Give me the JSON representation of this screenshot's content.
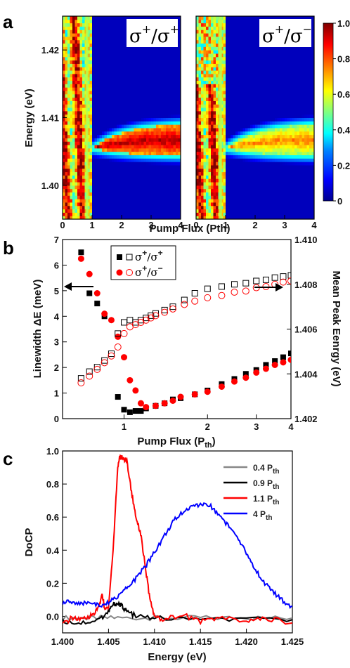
{
  "chart_data": [
    {
      "panel": "a",
      "type": "heatmap",
      "xlabel": "Pump Flux (Pth)",
      "ylabel": "Energy (eV)",
      "xlim": [
        0,
        4
      ],
      "ylim": [
        1.395,
        1.425
      ],
      "xticks": [
        "0",
        "1",
        "2",
        "3",
        "4"
      ],
      "yticks": [
        "1.40",
        "1.41",
        "1.42"
      ],
      "ytick_values": [
        1.4,
        1.41,
        1.42
      ],
      "panels": [
        {
          "name": "left",
          "label_base": "σ",
          "label_sup1": "+",
          "label_sep": "/",
          "label_sup2": "+"
        },
        {
          "name": "right",
          "label_base": "σ",
          "label_sup1": "+",
          "label_sep": "/",
          "label_sup2": "−"
        }
      ],
      "colorbar": {
        "min": 0,
        "max": 1.0,
        "ticks": [
          "0",
          "0.2",
          "0.4",
          "0.6",
          "0.8",
          "1.0"
        ],
        "tick_values": [
          0,
          0.2,
          0.4,
          0.6,
          0.8,
          1.0
        ]
      },
      "colormap": [
        "#00008f",
        "#0000ff",
        "#0080ff",
        "#00ffff",
        "#80ff80",
        "#ffff00",
        "#ff8000",
        "#ff0000",
        "#800000"
      ]
    },
    {
      "panel": "b",
      "type": "scatter",
      "xlabel": "Pump Flux (P",
      "xlabel_sub": "th",
      "xlabel_end": ")",
      "ylabel": "Linewidth ΔE (meV)",
      "y2label": "Mean Peak Eenrgy (eV)",
      "xscale": "log",
      "xlim": [
        0.6,
        4
      ],
      "ylim": [
        0,
        7
      ],
      "y2lim": [
        1.402,
        1.41
      ],
      "xticks": [
        "1",
        "2",
        "3",
        "4"
      ],
      "xtick_values": [
        1,
        2,
        3,
        4
      ],
      "yticks": [
        "0",
        "1",
        "2",
        "3",
        "4",
        "5",
        "6",
        "7"
      ],
      "ytick_values": [
        0,
        1,
        2,
        3,
        4,
        5,
        6,
        7
      ],
      "y2ticks": [
        "1.402",
        "1.404",
        "1.406",
        "1.408",
        "1.410"
      ],
      "y2tick_values": [
        1.402,
        1.404,
        1.406,
        1.408,
        1.41
      ],
      "legend": [
        {
          "base": "σ",
          "sup1": "+",
          "sep": "/",
          "sup2": "+"
        },
        {
          "base": "σ",
          "sup1": "+",
          "sep": "/",
          "sup2": "−"
        }
      ],
      "legend_position": "top-left",
      "series": [
        {
          "color": "#000000",
          "marker": "filled-square",
          "axis": "left",
          "x": [
            0.7,
            0.75,
            0.8,
            0.85,
            0.95,
            1.0,
            1.05,
            1.1,
            1.15,
            1.2,
            1.3,
            1.4,
            1.5,
            1.6,
            1.8,
            2.0,
            2.25,
            2.5,
            2.75,
            3.0,
            3.25,
            3.5,
            3.75,
            4.0
          ],
          "y": [
            6.5,
            4.9,
            4.5,
            4.0,
            0.85,
            0.35,
            0.25,
            0.3,
            0.3,
            0.4,
            0.5,
            0.6,
            0.75,
            0.8,
            0.95,
            1.1,
            1.35,
            1.55,
            1.75,
            1.9,
            2.1,
            2.25,
            2.4,
            2.55
          ]
        },
        {
          "color": "#ff0000",
          "marker": "filled-circle",
          "axis": "left",
          "x": [
            0.7,
            0.75,
            0.8,
            0.85,
            0.9,
            0.95,
            1.0,
            1.05,
            1.1,
            1.15,
            1.2,
            1.3,
            1.4,
            1.5,
            1.6,
            1.8,
            2.0,
            2.25,
            2.5,
            2.75,
            3.0,
            3.25,
            3.5,
            3.75,
            4.0
          ],
          "y": [
            6.25,
            5.65,
            4.9,
            4.1,
            3.85,
            3.2,
            2.4,
            1.5,
            1.1,
            0.6,
            0.45,
            0.5,
            0.6,
            0.7,
            0.85,
            0.95,
            1.05,
            1.25,
            1.45,
            1.6,
            1.8,
            1.95,
            2.1,
            2.2,
            2.3
          ]
        },
        {
          "color": "#000000",
          "marker": "open-square",
          "axis": "right",
          "x": [
            0.7,
            0.75,
            0.8,
            0.85,
            0.9,
            0.95,
            1.0,
            1.05,
            1.1,
            1.15,
            1.2,
            1.25,
            1.3,
            1.4,
            1.5,
            1.65,
            1.8,
            2.0,
            2.25,
            2.5,
            2.75,
            3.0,
            3.25,
            3.5,
            3.75,
            4.0
          ],
          "y": [
            1.4038,
            1.4041,
            1.4043,
            1.4046,
            1.4049,
            1.4058,
            1.4063,
            1.4064,
            1.4063,
            1.4064,
            1.4065,
            1.4066,
            1.4067,
            1.40685,
            1.407,
            1.4073,
            1.4076,
            1.4078,
            1.4079,
            1.408,
            1.40805,
            1.40815,
            1.4082,
            1.4083,
            1.40835,
            1.4084
          ]
        },
        {
          "color": "#ff0000",
          "marker": "open-circle",
          "axis": "right",
          "x": [
            0.7,
            0.75,
            0.8,
            0.85,
            0.9,
            0.95,
            1.0,
            1.05,
            1.1,
            1.15,
            1.2,
            1.25,
            1.3,
            1.4,
            1.5,
            1.65,
            1.8,
            2.0,
            2.25,
            2.5,
            2.75,
            3.0,
            3.25,
            3.5,
            3.75,
            4.0
          ],
          "y": [
            1.4036,
            1.4039,
            1.4042,
            1.4045,
            1.4048,
            1.4052,
            1.4058,
            1.4061,
            1.4062,
            1.4063,
            1.4064,
            1.4065,
            1.4066,
            1.40675,
            1.4069,
            1.4071,
            1.40725,
            1.4074,
            1.4075,
            1.40765,
            1.4077,
            1.40785,
            1.4079,
            1.408,
            1.4081,
            1.40815
          ]
        }
      ],
      "annotations": [
        "left-arrow at (0.65, 4.2)",
        "right-arrow at (3.3, 1.4078)"
      ]
    },
    {
      "panel": "c",
      "type": "line",
      "xlabel": "Energy (eV)",
      "ylabel": "DoCP",
      "xlim": [
        1.4,
        1.425
      ],
      "ylim": [
        -0.1,
        1.0
      ],
      "xticks": [
        "1.400",
        "1.405",
        "1.410",
        "1.415",
        "1.420",
        "1.425"
      ],
      "xtick_values": [
        1.4,
        1.405,
        1.41,
        1.415,
        1.42,
        1.425
      ],
      "yticks": [
        "0.0",
        "0.2",
        "0.4",
        "0.6",
        "0.8",
        "1.0"
      ],
      "ytick_values": [
        0,
        0.2,
        0.4,
        0.6,
        0.8,
        1.0
      ],
      "legend_position": "top-right",
      "series": [
        {
          "name": "0.4 P",
          "sub": "th",
          "color": "#888888",
          "x": [
            1.4,
            1.403,
            1.406,
            1.41,
            1.415,
            1.42,
            1.425
          ],
          "y": [
            -0.01,
            -0.01,
            -0.01,
            -0.01,
            -0.01,
            -0.01,
            -0.01
          ]
        },
        {
          "name": "0.9 P",
          "sub": "th",
          "color": "#000000",
          "x": [
            1.4,
            1.402,
            1.404,
            1.405,
            1.4055,
            1.406,
            1.4065,
            1.407,
            1.408,
            1.41,
            1.415,
            1.42,
            1.425
          ],
          "y": [
            -0.03,
            -0.04,
            -0.02,
            0.03,
            0.07,
            0.08,
            0.06,
            0.03,
            0.0,
            -0.01,
            -0.02,
            -0.02,
            -0.02
          ]
        },
        {
          "name": "1.1 P",
          "sub": "th",
          "color": "#ff0000",
          "x": [
            1.4,
            1.401,
            1.402,
            1.403,
            1.4035,
            1.404,
            1.4043,
            1.4046,
            1.405,
            1.4055,
            1.406,
            1.4062,
            1.4065,
            1.407,
            1.4075,
            1.408,
            1.4085,
            1.409,
            1.4095,
            1.41,
            1.411,
            1.413,
            1.415,
            1.417,
            1.42,
            1.422,
            1.425
          ],
          "y": [
            -0.05,
            -0.01,
            -0.02,
            0.0,
            0.02,
            0.06,
            0.14,
            0.04,
            0.06,
            0.4,
            0.9,
            0.96,
            0.96,
            0.94,
            0.75,
            0.6,
            0.5,
            0.3,
            0.1,
            0.0,
            -0.02,
            0.01,
            -0.03,
            -0.01,
            -0.03,
            -0.01,
            -0.04
          ]
        },
        {
          "name": "4 P",
          "sub": "th",
          "color": "#0000ff",
          "x": [
            1.4,
            1.401,
            1.402,
            1.403,
            1.404,
            1.405,
            1.406,
            1.407,
            1.408,
            1.409,
            1.41,
            1.411,
            1.412,
            1.413,
            1.414,
            1.415,
            1.416,
            1.417,
            1.418,
            1.419,
            1.42,
            1.421,
            1.422,
            1.423,
            1.424,
            1.425
          ],
          "y": [
            0.08,
            0.09,
            0.07,
            0.09,
            0.06,
            0.08,
            0.12,
            0.17,
            0.23,
            0.3,
            0.39,
            0.48,
            0.57,
            0.63,
            0.66,
            0.68,
            0.67,
            0.62,
            0.55,
            0.47,
            0.38,
            0.28,
            0.2,
            0.14,
            0.09,
            0.06
          ]
        }
      ]
    }
  ],
  "panel_labels": [
    "a",
    "b",
    "c"
  ]
}
